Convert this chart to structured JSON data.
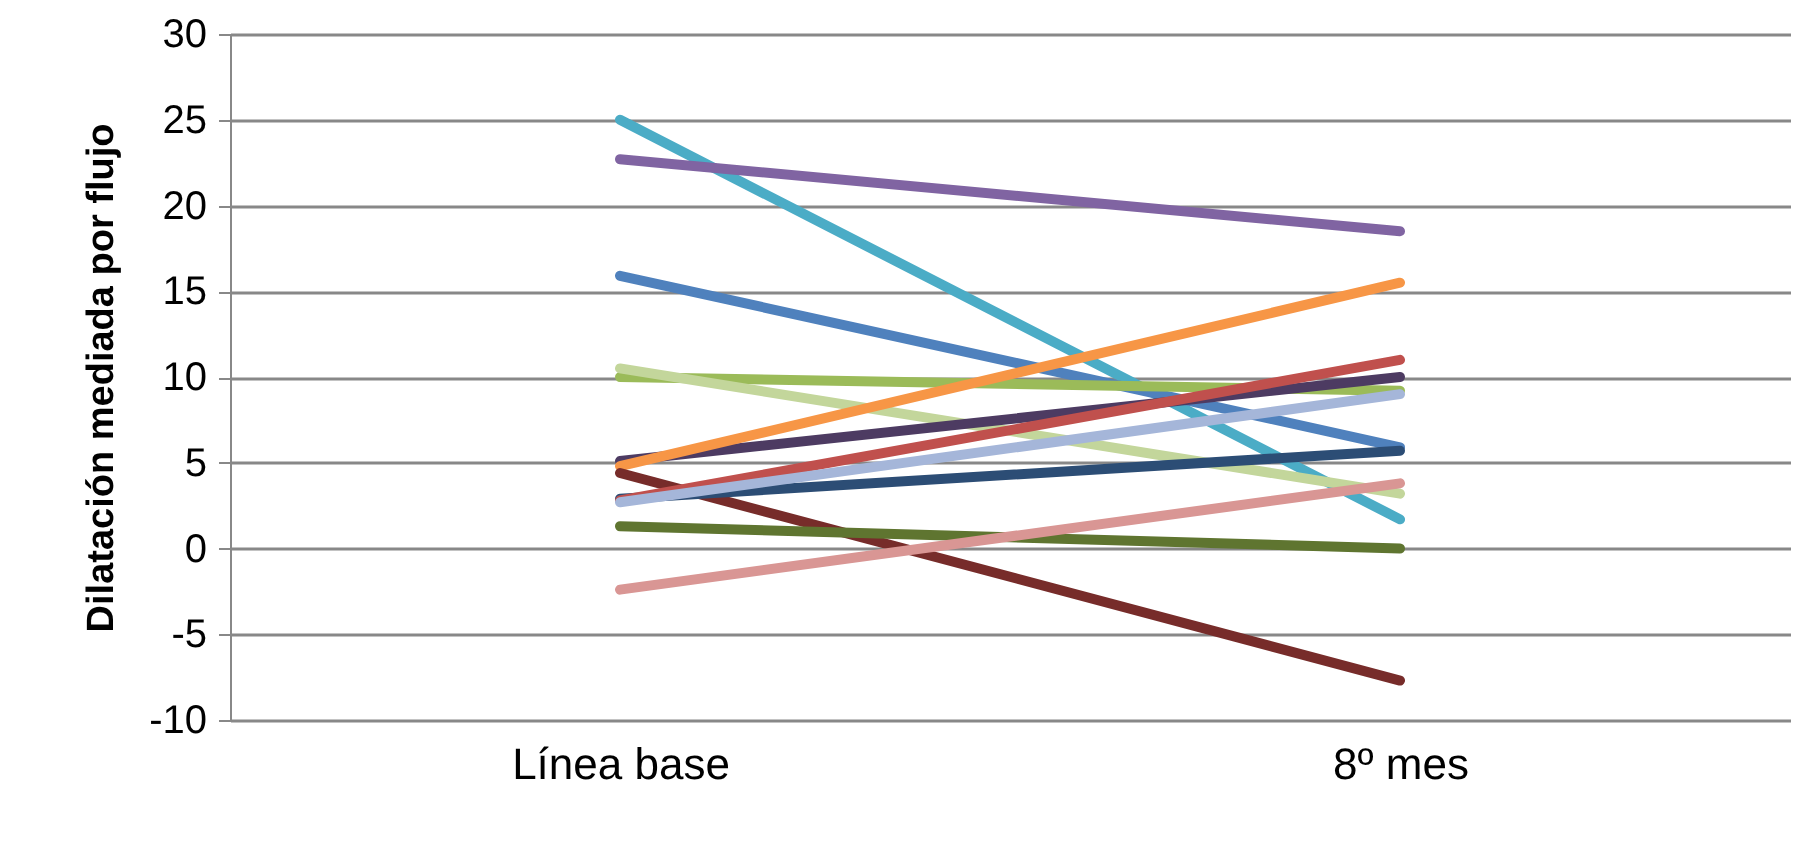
{
  "chart_data": {
    "type": "line",
    "ylabel": "Dilatación mediada por flujo",
    "categories": [
      "Línea base",
      "8º mes"
    ],
    "ylim": [
      -10,
      30
    ],
    "yticks": [
      -10,
      -5,
      0,
      5,
      10,
      15,
      20,
      25,
      30
    ],
    "grid": "y",
    "marker": "none",
    "line_style": "solid",
    "series": [
      {
        "color": "#4bacc6",
        "values": [
          25.0,
          1.7
        ]
      },
      {
        "color": "#8064a2",
        "values": [
          22.7,
          18.5
        ]
      },
      {
        "color": "#4f81bd",
        "values": [
          15.9,
          5.9
        ]
      },
      {
        "color": "#9bbb59",
        "values": [
          10.0,
          9.2
        ]
      },
      {
        "color": "#c3d69b",
        "values": [
          10.5,
          3.2
        ]
      },
      {
        "color": "#4d3b62",
        "values": [
          5.1,
          10.0
        ]
      },
      {
        "color": "#f79646",
        "values": [
          4.8,
          15.5
        ]
      },
      {
        "color": "#772c2a",
        "values": [
          4.4,
          -7.7
        ]
      },
      {
        "color": "#2c4d75",
        "values": [
          2.9,
          5.7
        ]
      },
      {
        "color": "#c0504d",
        "values": [
          2.8,
          11.0
        ]
      },
      {
        "color": "#a5b6d9",
        "values": [
          2.7,
          9.0
        ]
      },
      {
        "color": "#5f7530",
        "values": [
          1.3,
          0.0
        ]
      },
      {
        "color": "#d99694",
        "values": [
          -2.4,
          3.8
        ]
      }
    ]
  }
}
